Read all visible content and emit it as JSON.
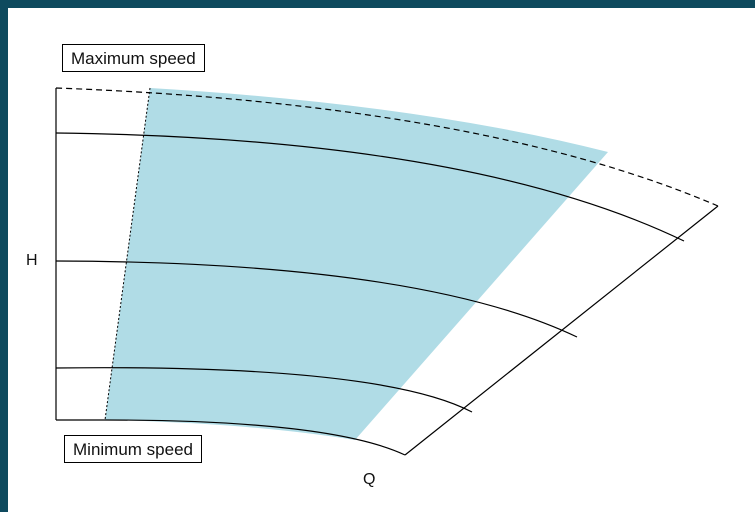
{
  "labels": {
    "max_speed": "Maximum speed",
    "min_speed": "Minimum speed",
    "h_axis": "H",
    "q_axis": "Q"
  },
  "colors": {
    "background": "#0e4a5e",
    "operating_region": "#b0dce6",
    "curve": "#000000"
  }
}
